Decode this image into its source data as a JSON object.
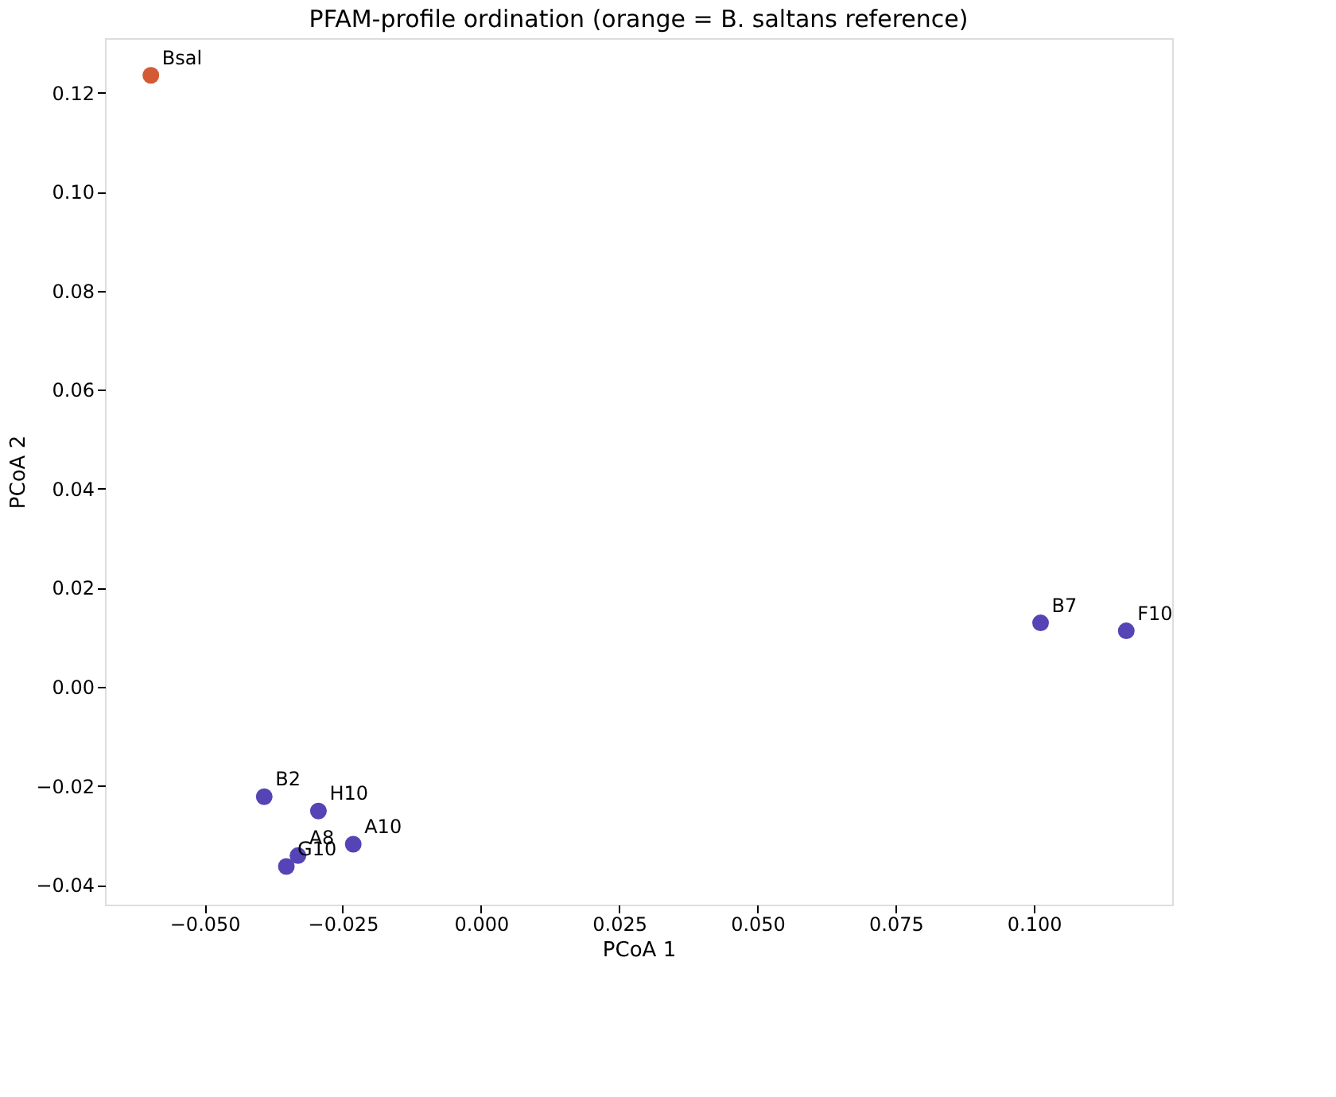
{
  "chart_data": {
    "type": "scatter",
    "title": "PFAM-profile ordination (orange = B. saltans reference)",
    "xlabel": "PCoA 1",
    "ylabel": "PCoA 2",
    "marker": "circle",
    "grid": false,
    "legend": false,
    "xlim": [
      -0.068,
      0.125
    ],
    "ylim": [
      -0.044,
      0.131
    ],
    "xticks": [
      {
        "value": -0.05,
        "label": "−0.050"
      },
      {
        "value": -0.025,
        "label": "−0.025"
      },
      {
        "value": 0,
        "label": "0.000"
      },
      {
        "value": 0.025,
        "label": "0.025"
      },
      {
        "value": 0.05,
        "label": "0.050"
      },
      {
        "value": 0.075,
        "label": "0.075"
      },
      {
        "value": 0.1,
        "label": "0.100"
      }
    ],
    "yticks": [
      {
        "value": -0.04,
        "label": "−0.04"
      },
      {
        "value": -0.02,
        "label": "−0.02"
      },
      {
        "value": 0,
        "label": "0.00"
      },
      {
        "value": 0.02,
        "label": "0.02"
      },
      {
        "value": 0.04,
        "label": "0.04"
      },
      {
        "value": 0.06,
        "label": "0.06"
      },
      {
        "value": 0.08,
        "label": "0.08"
      },
      {
        "value": 0.1,
        "label": "0.10"
      },
      {
        "value": 0.12,
        "label": "0.12"
      }
    ],
    "series": [
      {
        "name": "Bsal",
        "color": "#d35a35",
        "x": [
          -0.0597
        ],
        "values": [
          0.1235
        ]
      },
      {
        "name": "B7",
        "color": "#5544b5",
        "x": [
          0.1012
        ],
        "values": [
          0.0129
        ]
      },
      {
        "name": "F10",
        "color": "#5544b5",
        "x": [
          0.1167
        ],
        "values": [
          0.0113
        ]
      },
      {
        "name": "B2",
        "color": "#5544b5",
        "x": [
          -0.0392
        ],
        "values": [
          -0.0222
        ]
      },
      {
        "name": "H10",
        "color": "#5544b5",
        "x": [
          -0.0294
        ],
        "values": [
          -0.0251
        ]
      },
      {
        "name": "A8",
        "color": "#5544b5",
        "x": [
          -0.0331
        ],
        "values": [
          -0.0341
        ]
      },
      {
        "name": "A10",
        "color": "#5544b5",
        "x": [
          -0.0231
        ],
        "values": [
          -0.0318
        ]
      },
      {
        "name": "G10",
        "color": "#5544b5",
        "x": [
          -0.0352
        ],
        "values": [
          -0.0363
        ]
      }
    ]
  }
}
